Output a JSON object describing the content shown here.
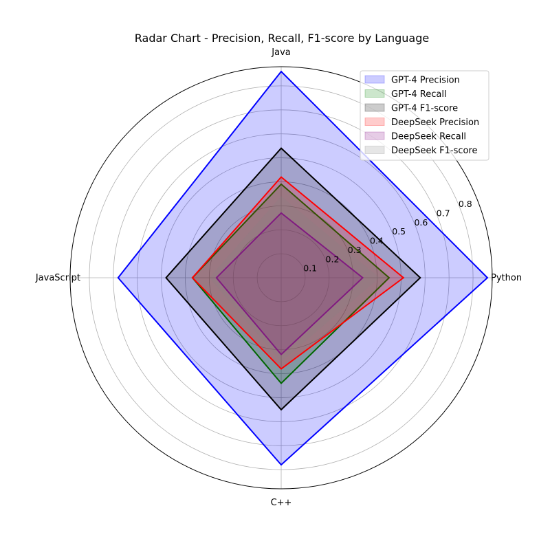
{
  "chart_data": {
    "type": "radar",
    "title": "Radar Chart - Precision, Recall, F1-score by Language",
    "categories": [
      "Python",
      "Java",
      "JavaScript",
      "C++"
    ],
    "rlim": [
      0,
      0.88
    ],
    "r_ticks": [
      0.1,
      0.2,
      0.3,
      0.4,
      0.5,
      0.6,
      0.7,
      0.8
    ],
    "grid": true,
    "legend_position": "top-right",
    "series": [
      {
        "name": "GPT-4 Precision",
        "values": [
          0.86,
          0.86,
          0.68,
          0.78
        ],
        "line_color": "#0000ff",
        "fill_color": "#0000ff",
        "fill_alpha": 0.2
      },
      {
        "name": "GPT-4 Recall",
        "values": [
          0.45,
          0.39,
          0.37,
          0.44
        ],
        "line_color": "#008000",
        "fill_color": "#008000",
        "fill_alpha": 0.2
      },
      {
        "name": "GPT-4 F1-score",
        "values": [
          0.58,
          0.54,
          0.48,
          0.55
        ],
        "line_color": "#000000",
        "fill_color": "#000000",
        "fill_alpha": 0.2
      },
      {
        "name": "DeepSeek Precision",
        "values": [
          0.51,
          0.42,
          0.37,
          0.38
        ],
        "line_color": "#ff0000",
        "fill_color": "#ff0000",
        "fill_alpha": 0.2
      },
      {
        "name": "DeepSeek Recall",
        "values": [
          0.34,
          0.27,
          0.27,
          0.32
        ],
        "line_color": "#800080",
        "fill_color": "#800080",
        "fill_alpha": 0.2
      },
      {
        "name": "DeepSeek F1-score",
        "values": [
          0.41,
          0.34,
          0.3,
          0.35
        ],
        "line_color": "none",
        "fill_color": "#808080",
        "fill_alpha": 0.2
      }
    ]
  }
}
